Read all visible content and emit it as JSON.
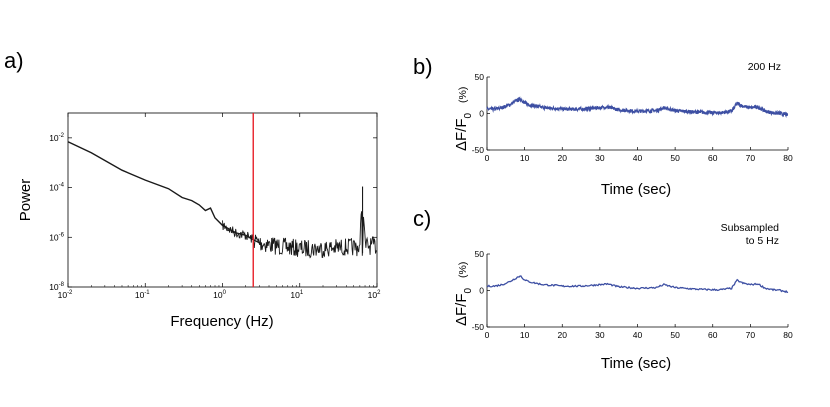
{
  "panel_labels": {
    "a": "a)",
    "b": "b)",
    "c": "c)"
  },
  "chart_data": [
    {
      "id": "a",
      "type": "line",
      "title": "",
      "xlabel": "Frequency (Hz)",
      "ylabel": "Power",
      "xscale": "log",
      "yscale": "log",
      "xlim": [
        0.01,
        100
      ],
      "ylim": [
        1e-08,
        0.1
      ],
      "x_ticks": [
        {
          "base": "10",
          "exp": "-2"
        },
        {
          "base": "10",
          "exp": "-1"
        },
        {
          "base": "10",
          "exp": "0"
        },
        {
          "base": "10",
          "exp": "1"
        },
        {
          "base": "10",
          "exp": "2"
        }
      ],
      "y_ticks": [
        {
          "base": "10",
          "exp": "-8"
        },
        {
          "base": "10",
          "exp": "-6"
        },
        {
          "base": "10",
          "exp": "-4"
        },
        {
          "base": "10",
          "exp": "-2"
        }
      ],
      "grid": false,
      "legend": "none",
      "series": [
        {
          "color": "#1a1a1a",
          "x": [
            0.01,
            0.02,
            0.05,
            0.1,
            0.2,
            0.3,
            0.4,
            0.5,
            0.6,
            0.7,
            0.8,
            1,
            1.5,
            2,
            2.5,
            3,
            5,
            10,
            20,
            40,
            60,
            65,
            70,
            100
          ],
          "y": [
            0.007,
            0.0025,
            0.0005,
            0.0002,
            9e-05,
            4e-05,
            3e-05,
            2e-05,
            1.2e-05,
            1.5e-05,
            6e-06,
            3e-06,
            1.5e-06,
            1.2e-06,
            8e-07,
            6e-07,
            4.5e-07,
            3.5e-07,
            3.5e-07,
            4e-07,
            4e-07,
            0.00011,
            4.5e-07,
            4.5e-07
          ]
        }
      ],
      "marker_line": {
        "x": 2.5,
        "color": "#e8202a"
      }
    },
    {
      "id": "b",
      "type": "line",
      "title": "",
      "annotation": "200 Hz",
      "xlabel": "Time (sec)",
      "ylabel_main": "ΔF/F",
      "ylabel_sub": "0",
      "ylabel_unit": "(%)",
      "xlim": [
        0,
        80
      ],
      "ylim": [
        -50,
        50
      ],
      "x_ticks": [
        "0",
        "10",
        "20",
        "30",
        "40",
        "50",
        "60",
        "70",
        "80"
      ],
      "y_ticks": [
        "-50",
        "0",
        "50"
      ],
      "grid": false,
      "legend": "none",
      "series": [
        {
          "color": "#3d4fa3",
          "x": [
            0,
            2,
            4,
            6,
            8,
            9,
            10,
            12,
            15,
            18,
            20,
            25,
            30,
            32,
            35,
            40,
            45,
            47,
            50,
            55,
            60,
            62,
            65,
            66.5,
            68,
            70,
            72,
            74,
            76,
            78,
            80
          ],
          "y": [
            6,
            6,
            8,
            12,
            18,
            20,
            14,
            11,
            8,
            7,
            6,
            6,
            8,
            9,
            5,
            3,
            4,
            8,
            4,
            2,
            1,
            1,
            3,
            14,
            10,
            8,
            9,
            3,
            1,
            0,
            -2
          ]
        }
      ]
    },
    {
      "id": "c",
      "type": "line",
      "title": "",
      "annotation_lines": [
        "Subsampled",
        "to 5 Hz"
      ],
      "xlabel": "Time (sec)",
      "ylabel_main": "ΔF/F",
      "ylabel_sub": "0",
      "ylabel_unit": "(%)",
      "xlim": [
        0,
        80
      ],
      "ylim": [
        -50,
        50
      ],
      "x_ticks": [
        "0",
        "10",
        "20",
        "30",
        "40",
        "50",
        "60",
        "70",
        "80"
      ],
      "y_ticks": [
        "-50",
        "0",
        "50"
      ],
      "grid": false,
      "legend": "none",
      "series": [
        {
          "color": "#3d4fa3",
          "x": [
            0,
            2,
            4,
            6,
            8,
            9,
            10,
            12,
            15,
            18,
            20,
            25,
            30,
            32,
            35,
            40,
            45,
            47,
            50,
            55,
            60,
            62,
            65,
            66.5,
            68,
            70,
            72,
            74,
            76,
            78,
            80
          ],
          "y": [
            6,
            6,
            8,
            12,
            18,
            20,
            14,
            11,
            8,
            7,
            6,
            6,
            8,
            9,
            5,
            3,
            4,
            8,
            4,
            2,
            1,
            1,
            3,
            14,
            10,
            8,
            9,
            3,
            1,
            0,
            -2
          ]
        }
      ]
    }
  ]
}
